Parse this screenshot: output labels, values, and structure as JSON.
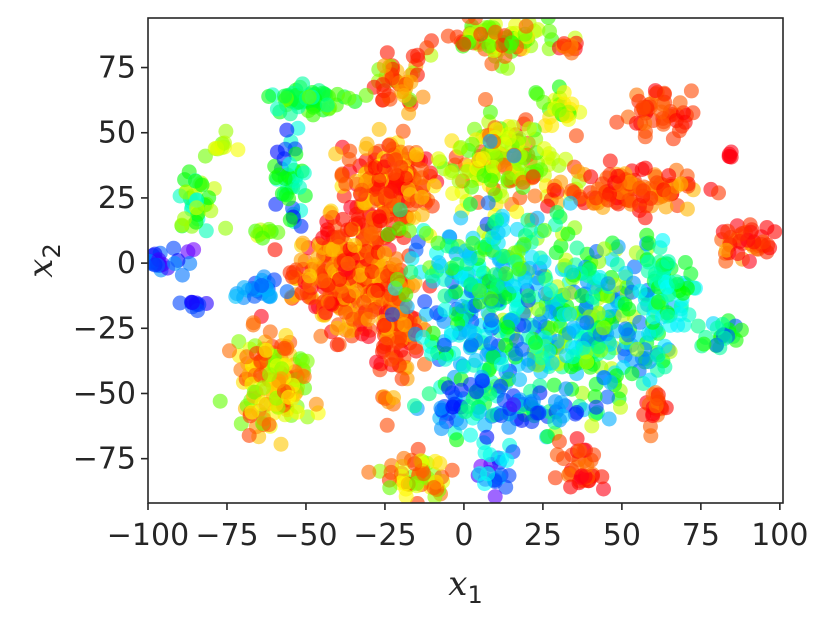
{
  "chart_data": {
    "type": "scatter",
    "title": "",
    "xlabel": "x",
    "xlabel_sub": "1",
    "ylabel": "x",
    "ylabel_sub": "2",
    "xlim": [
      -100,
      101
    ],
    "ylim": [
      -92,
      94
    ],
    "xticks": [
      -100,
      -75,
      -50,
      -25,
      0,
      25,
      50,
      75,
      100
    ],
    "yticks": [
      -75,
      -50,
      -25,
      0,
      25,
      50,
      75
    ],
    "xtick_labels": [
      "−100",
      "−75",
      "−50",
      "−25",
      "0",
      "25",
      "50",
      "75",
      "100"
    ],
    "ytick_labels": [
      "−75",
      "−50",
      "−25",
      "0",
      "25",
      "50",
      "75"
    ],
    "grid": false,
    "legend": "none",
    "colormap": "hsv (red → yellow → green → cyan → blue → violet)",
    "point_alpha": 0.6,
    "clusters": [
      {
        "cx": -37,
        "cy": -5,
        "sx": 8,
        "sy": 10,
        "n": 320,
        "hues": [
          0,
          20,
          45
        ]
      },
      {
        "cx": -22,
        "cy": -22,
        "sx": 4,
        "sy": 10,
        "n": 120,
        "hues": [
          0,
          15,
          35
        ]
      },
      {
        "cx": -25,
        "cy": 30,
        "sx": 7,
        "sy": 9,
        "n": 200,
        "hues": [
          0,
          20,
          50
        ]
      },
      {
        "cx": 12,
        "cy": 38,
        "sx": 9,
        "sy": 9,
        "n": 170,
        "hues": [
          60,
          80,
          100,
          20
        ]
      },
      {
        "cx": 12,
        "cy": 85,
        "sx": 9,
        "sy": 4,
        "n": 90,
        "hues": [
          60,
          80,
          100,
          15
        ]
      },
      {
        "cx": 52,
        "cy": 28,
        "sx": 10,
        "sy": 4,
        "n": 120,
        "hues": [
          5,
          20,
          35
        ]
      },
      {
        "cx": 60,
        "cy": 58,
        "sx": 6,
        "sy": 4,
        "n": 45,
        "hues": [
          5,
          20
        ]
      },
      {
        "cx": 91,
        "cy": 8,
        "sx": 5,
        "sy": 3,
        "n": 40,
        "hues": [
          0,
          15,
          40
        ]
      },
      {
        "cx": 38,
        "cy": -22,
        "sx": 15,
        "sy": 16,
        "n": 340,
        "hues": [
          120,
          160,
          190,
          210,
          80
        ]
      },
      {
        "cx": 5,
        "cy": -25,
        "sx": 9,
        "sy": 20,
        "n": 190,
        "hues": [
          120,
          170,
          200,
          220
        ]
      },
      {
        "cx": 12,
        "cy": -55,
        "sx": 14,
        "sy": 4,
        "n": 80,
        "hues": [
          200,
          230,
          150
        ]
      },
      {
        "cx": -60,
        "cy": -45,
        "sx": 6,
        "sy": 9,
        "n": 150,
        "hues": [
          60,
          90,
          20,
          40
        ]
      },
      {
        "cx": -55,
        "cy": 30,
        "sx": 3,
        "sy": 8,
        "n": 40,
        "hues": [
          120,
          170,
          230
        ]
      },
      {
        "cx": -50,
        "cy": 62,
        "sx": 6,
        "sy": 3,
        "n": 55,
        "hues": [
          100,
          130,
          160
        ]
      },
      {
        "cx": -20,
        "cy": 70,
        "sx": 4,
        "sy": 5,
        "n": 45,
        "hues": [
          90,
          10,
          40
        ]
      },
      {
        "cx": -85,
        "cy": 22,
        "sx": 3,
        "sy": 5,
        "n": 35,
        "hues": [
          80,
          120,
          170
        ]
      },
      {
        "cx": -95,
        "cy": 1,
        "sx": 4,
        "sy": 2,
        "n": 25,
        "hues": [
          230,
          260,
          210
        ]
      },
      {
        "cx": -65,
        "cy": -10,
        "sx": 4,
        "sy": 2,
        "n": 25,
        "hues": [
          200,
          220
        ]
      },
      {
        "cx": -85,
        "cy": -16,
        "sx": 2,
        "sy": 1,
        "n": 10,
        "hues": [
          250,
          230
        ]
      },
      {
        "cx": -77,
        "cy": 45,
        "sx": 2,
        "sy": 2,
        "n": 10,
        "hues": [
          70,
          90
        ]
      },
      {
        "cx": -63,
        "cy": 12,
        "sx": 3,
        "sy": 1,
        "n": 10,
        "hues": [
          70,
          100
        ]
      },
      {
        "cx": -15,
        "cy": -82,
        "sx": 5,
        "sy": 5,
        "n": 55,
        "hues": [
          60,
          90,
          20
        ]
      },
      {
        "cx": 10,
        "cy": -80,
        "sx": 3,
        "sy": 6,
        "n": 25,
        "hues": [
          220,
          260,
          180
        ]
      },
      {
        "cx": 37,
        "cy": -78,
        "sx": 3,
        "sy": 6,
        "n": 35,
        "hues": [
          0,
          20
        ]
      },
      {
        "cx": 60,
        "cy": -55,
        "sx": 2,
        "sy": 4,
        "n": 20,
        "hues": [
          0,
          20
        ]
      },
      {
        "cx": 82,
        "cy": -28,
        "sx": 3,
        "sy": 3,
        "n": 20,
        "hues": [
          120,
          160,
          220
        ]
      },
      {
        "cx": 30,
        "cy": 60,
        "sx": 3,
        "sy": 4,
        "n": 25,
        "hues": [
          60,
          90,
          110
        ]
      },
      {
        "cx": 33,
        "cy": 83,
        "sx": 2,
        "sy": 2,
        "n": 10,
        "hues": [
          0,
          30
        ]
      },
      {
        "cx": -25,
        "cy": -53,
        "sx": 2,
        "sy": 1,
        "n": 6,
        "hues": [
          20,
          40
        ]
      },
      {
        "cx": 5,
        "cy": 2,
        "sx": 12,
        "sy": 8,
        "n": 80,
        "hues": [
          100,
          150,
          190
        ]
      },
      {
        "cx": 65,
        "cy": -10,
        "sx": 4,
        "sy": 10,
        "n": 60,
        "hues": [
          120,
          160,
          180
        ]
      },
      {
        "cx": 84,
        "cy": 42,
        "sx": 1,
        "sy": 1,
        "n": 5,
        "hues": [
          0
        ]
      },
      {
        "cx": -55,
        "cy": -5,
        "sx": 1,
        "sy": 1,
        "n": 3,
        "hues": [
          10
        ]
      }
    ]
  }
}
